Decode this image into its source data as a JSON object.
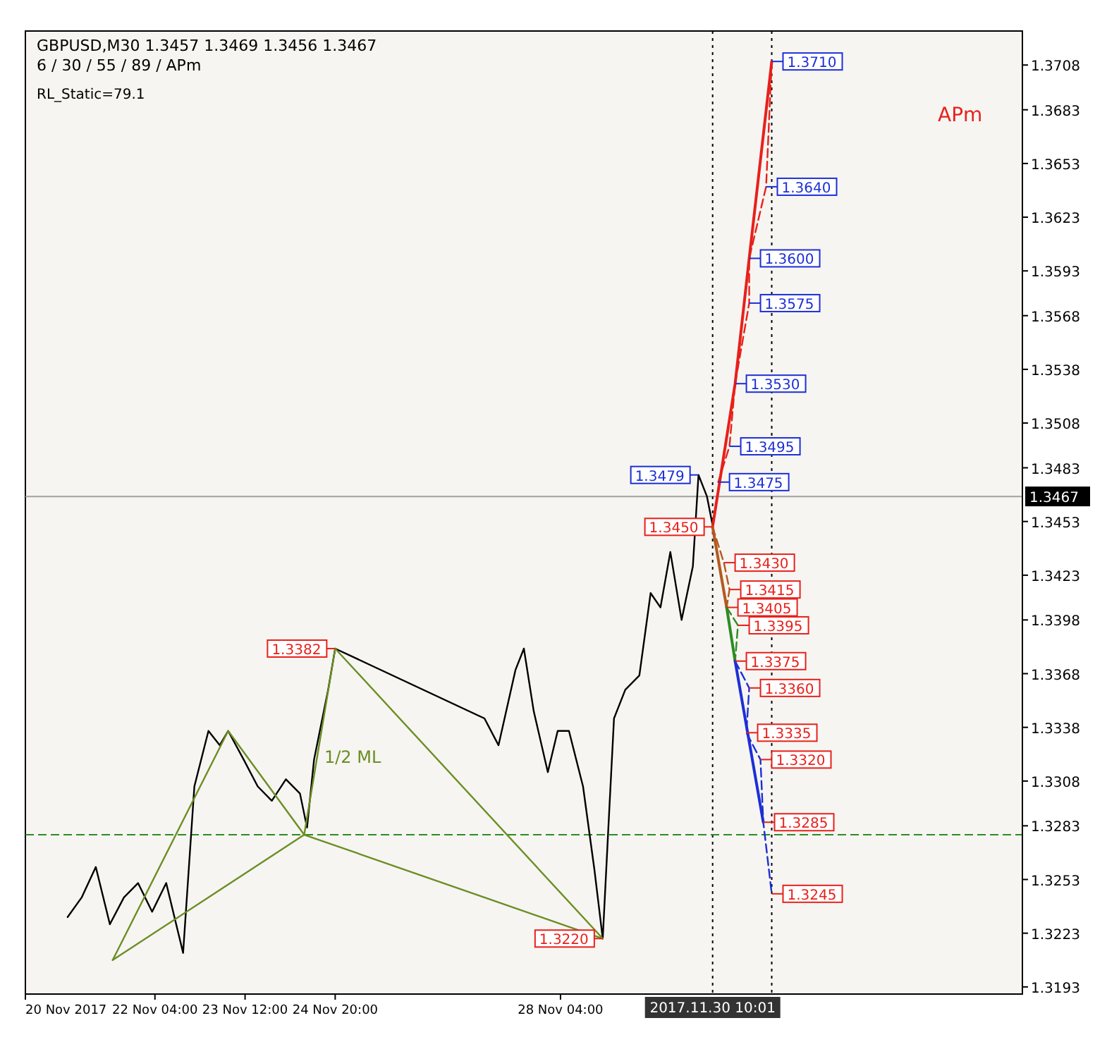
{
  "chart_data": {
    "type": "line",
    "title": "GBPUSD,M30  1.3457 1.3469 1.3456 1.3467",
    "subtitle": "6 / 30 / 55 / 89 / APm",
    "xlim": [
      "2017-11-20T06:00",
      "2017-12-05T00:00"
    ],
    "xticks": [
      {
        "value": "2017-11-20T06:00",
        "label": "20 Nov 2017"
      },
      {
        "value": "2017-11-22T04:00",
        "label": "22 Nov 04:00"
      },
      {
        "value": "2017-11-23T12:00",
        "label": "23 Nov 12:00"
      },
      {
        "value": "2017-11-24T20:00",
        "label": "24 Nov 20:00"
      },
      {
        "value": "2017-11-28T04:00",
        "label": "28 Nov 04:00"
      }
    ],
    "ylim": [
      1.3189,
      1.3727
    ],
    "yticks": [
      1.3193,
      1.3223,
      1.3253,
      1.3283,
      1.3308,
      1.3338,
      1.3368,
      1.3398,
      1.3423,
      1.3453,
      1.3483,
      1.3508,
      1.3538,
      1.3568,
      1.3593,
      1.3623,
      1.3653,
      1.3683,
      1.3708
    ],
    "grid": false,
    "marker": "none",
    "series": [
      {
        "color": "#000000",
        "line_style": "solid",
        "x": [
          "2017-11-20T21:00",
          "2017-11-21T02:00",
          "2017-11-21T07:00",
          "2017-11-21T12:00",
          "2017-11-21T17:00",
          "2017-11-21T22:00",
          "2017-11-22T03:00",
          "2017-11-22T08:00",
          "2017-11-22T14:00",
          "2017-11-22T18:00",
          "2017-11-22T23:00",
          "2017-11-23T03:00",
          "2017-11-23T06:00",
          "2017-11-23T11:30",
          "2017-11-23T16:30",
          "2017-11-23T21:30",
          "2017-11-24T02:30",
          "2017-11-24T07:30",
          "2017-11-24T10:00",
          "2017-11-24T12:30",
          "2017-11-24T17:30",
          "2017-11-24T20:00",
          "2017-11-27T01:00",
          "2017-11-27T06:00",
          "2017-11-27T12:00",
          "2017-11-27T15:00",
          "2017-11-27T18:30",
          "2017-11-27T23:30",
          "2017-11-28T03:00",
          "2017-11-28T07:00",
          "2017-11-28T12:00",
          "2017-11-28T16:00",
          "2017-11-28T19:00",
          "2017-11-28T21:00",
          "2017-11-28T23:00",
          "2017-11-29T03:00",
          "2017-11-29T08:00",
          "2017-11-29T12:00",
          "2017-11-29T15:30",
          "2017-11-29T19:00",
          "2017-11-29T23:00",
          "2017-11-30T03:00",
          "2017-11-30T05:00",
          "2017-11-30T08:00",
          "2017-11-30T10:00"
        ],
        "values": [
          1.3232,
          1.3243,
          1.326,
          1.3228,
          1.3243,
          1.3251,
          1.3235,
          1.3251,
          1.3212,
          1.3305,
          1.3336,
          1.3328,
          1.3336,
          1.332,
          1.3305,
          1.3297,
          1.3309,
          1.3301,
          1.3282,
          1.332,
          1.3359,
          1.3382,
          1.3343,
          1.3328,
          1.337,
          1.3382,
          1.3347,
          1.3313,
          1.3336,
          1.3336,
          1.3305,
          1.3259,
          1.322,
          1.3282,
          1.3343,
          1.3359,
          1.3367,
          1.3413,
          1.3405,
          1.3436,
          1.3398,
          1.3428,
          1.3479,
          1.3467,
          1.3451
        ]
      },
      {
        "color": "#6b8e23",
        "line_style": "solid",
        "x": [
          "2017-11-21T13:00",
          "2017-11-23T06:00",
          "2017-11-24T09:00",
          "2017-11-24T20:00",
          "2017-11-28T19:00"
        ],
        "values": [
          1.3208,
          1.3336,
          1.3278,
          1.3382,
          1.322
        ]
      },
      {
        "color": "#6b8e23",
        "line_style": "solid",
        "x": [
          "2017-11-21T13:00",
          "2017-11-24T09:00",
          "2017-11-28T19:00"
        ],
        "values": [
          1.3208,
          1.3278,
          1.322
        ]
      },
      {
        "color": "#e8201a",
        "line_style": "solid",
        "x": [
          "2017-11-30T10:00",
          "2017-11-30T18:00",
          "2017-11-30T23:00",
          "2017-12-01T07:00"
        ],
        "values": [
          1.345,
          1.353,
          1.36,
          1.371
        ]
      },
      {
        "color": "#e8201a",
        "line_style": "dashed",
        "x": [
          "2017-11-30T12:00",
          "2017-11-30T16:00",
          "2017-11-30T18:00",
          "2017-11-30T23:00",
          "2017-11-30T23:00",
          "2017-12-01T05:00",
          "2017-12-01T07:00"
        ],
        "values": [
          1.3475,
          1.3495,
          1.353,
          1.3575,
          1.36,
          1.364,
          1.371
        ]
      },
      {
        "color": "#b35a1f",
        "line_style": "solid",
        "x": [
          "2017-11-30T10:00",
          "2017-11-30T15:00"
        ],
        "values": [
          1.345,
          1.3405
        ]
      },
      {
        "color": "#b35a1f",
        "line_style": "dashed",
        "x": [
          "2017-11-30T10:00",
          "2017-11-30T14:00",
          "2017-11-30T16:00",
          "2017-11-30T15:00"
        ],
        "values": [
          1.345,
          1.343,
          1.3415,
          1.3405
        ]
      },
      {
        "color": "#2e8b22",
        "line_style": "solid",
        "x": [
          "2017-11-30T15:00",
          "2017-11-30T18:00"
        ],
        "values": [
          1.3405,
          1.3375
        ]
      },
      {
        "color": "#2e8b22",
        "line_style": "dashed",
        "x": [
          "2017-11-30T15:00",
          "2017-11-30T19:00",
          "2017-11-30T18:00"
        ],
        "values": [
          1.3405,
          1.3395,
          1.3375
        ]
      },
      {
        "color": "#1c2fd6",
        "line_style": "solid",
        "x": [
          "2017-11-30T18:00",
          "2017-12-01T04:00"
        ],
        "values": [
          1.3375,
          1.3285
        ]
      },
      {
        "color": "#1c2fd6",
        "line_style": "dashed",
        "x": [
          "2017-11-30T18:00",
          "2017-11-30T23:00",
          "2017-11-30T22:00",
          "2017-12-01T03:00",
          "2017-12-01T04:00",
          "2017-12-01T07:00"
        ],
        "values": [
          1.3375,
          1.336,
          1.3335,
          1.332,
          1.3285,
          1.3245
        ]
      }
    ],
    "ref_lines": [
      {
        "axis": "y",
        "value": 1.3467,
        "label": "1.3467",
        "color": "#a0a0a0",
        "line_style": "solid"
      },
      {
        "axis": "x",
        "value": "2017-11-30T10:01",
        "label": "2017.11.30 10:01",
        "color": "#000000",
        "line_style": "dotted"
      },
      {
        "axis": "x",
        "value": "2017-12-01T07:00",
        "label": null,
        "color": "#000000",
        "line_style": "dotted"
      },
      {
        "axis": "y",
        "value": 1.3278,
        "label": null,
        "color": "#2e8b22",
        "line_style": "dashed"
      }
    ],
    "annotations": [
      "RL_Static=79.1",
      "APm",
      "1/2 ML",
      {
        "text": "1.3710",
        "x": "2017-12-01T07:00",
        "y": 1.371
      },
      {
        "text": "1.3640",
        "x": "2017-12-01T05:00",
        "y": 1.364
      },
      {
        "text": "1.3600",
        "x": "2017-11-30T23:00",
        "y": 1.36
      },
      {
        "text": "1.3575",
        "x": "2017-11-30T23:00",
        "y": 1.3575
      },
      {
        "text": "1.3530",
        "x": "2017-11-30T18:00",
        "y": 1.353
      },
      {
        "text": "1.3495",
        "x": "2017-11-30T16:00",
        "y": 1.3495
      },
      {
        "text": "1.3475",
        "x": "2017-11-30T12:00",
        "y": 1.3475
      },
      {
        "text": "1.3479",
        "x": "2017-11-30T05:00",
        "y": 1.3479
      },
      {
        "text": "1.3382",
        "x": "2017-11-24T20:00",
        "y": 1.3382
      },
      {
        "text": "1.3220",
        "x": "2017-11-28T19:00",
        "y": 1.322
      },
      {
        "text": "1.3450",
        "x": "2017-11-30T10:00",
        "y": 1.345
      },
      {
        "text": "1.3430",
        "x": "2017-11-30T14:00",
        "y": 1.343
      },
      {
        "text": "1.3415",
        "x": "2017-11-30T16:00",
        "y": 1.3415
      },
      {
        "text": "1.3405",
        "x": "2017-11-30T15:00",
        "y": 1.3405
      },
      {
        "text": "1.3395",
        "x": "2017-11-30T19:00",
        "y": 1.3395
      },
      {
        "text": "1.3375",
        "x": "2017-11-30T18:00",
        "y": 1.3375
      },
      {
        "text": "1.3360",
        "x": "2017-11-30T23:00",
        "y": 1.336
      },
      {
        "text": "1.3335",
        "x": "2017-11-30T22:00",
        "y": 1.3335
      },
      {
        "text": "1.3320",
        "x": "2017-12-01T03:00",
        "y": 1.332
      },
      {
        "text": "1.3285",
        "x": "2017-12-01T04:00",
        "y": 1.3285
      },
      {
        "text": "1.3245",
        "x": "2017-12-01T07:00",
        "y": 1.3245
      }
    ]
  }
}
